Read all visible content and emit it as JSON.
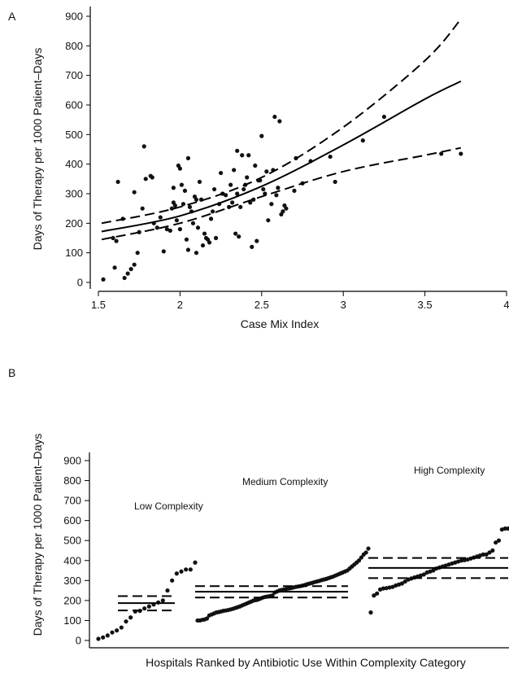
{
  "chart_data": [
    {
      "panel": "A",
      "type": "scatter",
      "xlabel": "Case Mix Index",
      "ylabel": "Days of Therapy per 1000 Patient–Days",
      "xlim": [
        1.5,
        4
      ],
      "ylim": [
        0,
        900
      ],
      "xticks": [
        1.5,
        2,
        2.5,
        3,
        3.5,
        4
      ],
      "xtick_labels": [
        "1.5",
        "2",
        "2.5",
        "3",
        "3.5",
        "4"
      ],
      "yticks": [
        0,
        100,
        200,
        300,
        400,
        500,
        600,
        700,
        800,
        900
      ],
      "grid": false,
      "points": [
        [
          1.53,
          10
        ],
        [
          1.59,
          150
        ],
        [
          1.6,
          50
        ],
        [
          1.61,
          140
        ],
        [
          1.62,
          340
        ],
        [
          1.65,
          215
        ],
        [
          1.66,
          15
        ],
        [
          1.68,
          30
        ],
        [
          1.7,
          45
        ],
        [
          1.72,
          60
        ],
        [
          1.72,
          305
        ],
        [
          1.74,
          100
        ],
        [
          1.75,
          170
        ],
        [
          1.77,
          250
        ],
        [
          1.78,
          460
        ],
        [
          1.79,
          350
        ],
        [
          1.82,
          360
        ],
        [
          1.83,
          355
        ],
        [
          1.84,
          200
        ],
        [
          1.86,
          185
        ],
        [
          1.88,
          220
        ],
        [
          1.9,
          105
        ],
        [
          1.92,
          180
        ],
        [
          1.94,
          175
        ],
        [
          1.95,
          250
        ],
        [
          1.96,
          320
        ],
        [
          1.96,
          270
        ],
        [
          1.97,
          260
        ],
        [
          1.98,
          210
        ],
        [
          1.99,
          395
        ],
        [
          2.0,
          385
        ],
        [
          2.0,
          180
        ],
        [
          2.01,
          330
        ],
        [
          2.02,
          265
        ],
        [
          2.03,
          310
        ],
        [
          2.04,
          145
        ],
        [
          2.05,
          420
        ],
        [
          2.05,
          110
        ],
        [
          2.06,
          255
        ],
        [
          2.07,
          240
        ],
        [
          2.08,
          200
        ],
        [
          2.09,
          290
        ],
        [
          2.1,
          280
        ],
        [
          2.1,
          100
        ],
        [
          2.11,
          185
        ],
        [
          2.12,
          340
        ],
        [
          2.13,
          280
        ],
        [
          2.14,
          125
        ],
        [
          2.15,
          165
        ],
        [
          2.16,
          150
        ],
        [
          2.17,
          145
        ],
        [
          2.18,
          135
        ],
        [
          2.19,
          215
        ],
        [
          2.2,
          240
        ],
        [
          2.21,
          315
        ],
        [
          2.22,
          150
        ],
        [
          2.24,
          265
        ],
        [
          2.25,
          370
        ],
        [
          2.26,
          300
        ],
        [
          2.28,
          295
        ],
        [
          2.3,
          255
        ],
        [
          2.31,
          330
        ],
        [
          2.32,
          270
        ],
        [
          2.33,
          380
        ],
        [
          2.34,
          165
        ],
        [
          2.35,
          445
        ],
        [
          2.35,
          300
        ],
        [
          2.36,
          155
        ],
        [
          2.37,
          255
        ],
        [
          2.38,
          430
        ],
        [
          2.39,
          315
        ],
        [
          2.4,
          330
        ],
        [
          2.41,
          355
        ],
        [
          2.42,
          430
        ],
        [
          2.43,
          270
        ],
        [
          2.44,
          120
        ],
        [
          2.45,
          280
        ],
        [
          2.46,
          395
        ],
        [
          2.47,
          140
        ],
        [
          2.48,
          345
        ],
        [
          2.49,
          345
        ],
        [
          2.5,
          495
        ],
        [
          2.51,
          315
        ],
        [
          2.52,
          300
        ],
        [
          2.53,
          375
        ],
        [
          2.54,
          210
        ],
        [
          2.56,
          265
        ],
        [
          2.57,
          380
        ],
        [
          2.58,
          560
        ],
        [
          2.59,
          295
        ],
        [
          2.6,
          320
        ],
        [
          2.61,
          545
        ],
        [
          2.62,
          230
        ],
        [
          2.63,
          240
        ],
        [
          2.64,
          260
        ],
        [
          2.65,
          250
        ],
        [
          2.7,
          310
        ],
        [
          2.71,
          420
        ],
        [
          2.75,
          335
        ],
        [
          2.8,
          410
        ],
        [
          2.92,
          425
        ],
        [
          2.95,
          340
        ],
        [
          3.12,
          480
        ],
        [
          3.25,
          560
        ],
        [
          3.6,
          435
        ],
        [
          3.72,
          435
        ]
      ],
      "fit_curve": [
        [
          1.52,
          172
        ],
        [
          2.0,
          225
        ],
        [
          2.5,
          325
        ],
        [
          3.0,
          465
        ],
        [
          3.5,
          620
        ],
        [
          3.72,
          680
        ]
      ],
      "ci_upper": [
        [
          1.52,
          200
        ],
        [
          2.0,
          255
        ],
        [
          2.5,
          355
        ],
        [
          3.0,
          525
        ],
        [
          3.5,
          750
        ],
        [
          3.72,
          890
        ]
      ],
      "ci_lower": [
        [
          1.52,
          145
        ],
        [
          2.0,
          200
        ],
        [
          2.5,
          290
        ],
        [
          3.0,
          375
        ],
        [
          3.5,
          430
        ],
        [
          3.72,
          455
        ]
      ]
    },
    {
      "panel": "B",
      "type": "scatter",
      "xlabel": "Hospitals Ranked by Antibiotic Use Within Complexity Category",
      "ylabel": "Days of Therapy per 1000 Patient–Days",
      "ylim": [
        0,
        900
      ],
      "yticks": [
        0,
        100,
        200,
        300,
        400,
        500,
        600,
        700,
        800,
        900
      ],
      "grid": false,
      "groups": [
        {
          "label": "Low Complexity",
          "values": [
            8,
            15,
            25,
            40,
            50,
            65,
            95,
            115,
            145,
            148,
            160,
            170,
            180,
            190,
            200,
            250,
            300,
            335,
            345,
            355,
            355,
            390
          ],
          "mean": 187,
          "ci_lower": 150,
          "ci_upper": 222
        },
        {
          "label": "Medium Complexity",
          "values": [
            100,
            100,
            103,
            105,
            110,
            125,
            130,
            135,
            140,
            142,
            145,
            148,
            150,
            152,
            155,
            158,
            162,
            166,
            170,
            175,
            180,
            185,
            190,
            195,
            200,
            202,
            205,
            210,
            215,
            218,
            220,
            222,
            225,
            240,
            245,
            250,
            253,
            255,
            258,
            260,
            262,
            265,
            268,
            270,
            272,
            275,
            278,
            282,
            285,
            288,
            292,
            295,
            298,
            302,
            305,
            308,
            312,
            316,
            320,
            325,
            330,
            335,
            340,
            345,
            350,
            360,
            370,
            380,
            390,
            400,
            415,
            430,
            440,
            460
          ],
          "mean": 244,
          "ci_lower": 215,
          "ci_upper": 272
        },
        {
          "label": "High Complexity",
          "values": [
            140,
            225,
            235,
            255,
            260,
            262,
            265,
            268,
            275,
            280,
            285,
            295,
            305,
            310,
            315,
            320,
            325,
            330,
            340,
            345,
            350,
            360,
            365,
            370,
            375,
            380,
            385,
            390,
            395,
            400,
            402,
            405,
            410,
            415,
            420,
            425,
            430,
            430,
            440,
            450,
            490,
            500,
            555,
            560,
            560
          ],
          "mean": 363,
          "ci_lower": 312,
          "ci_upper": 413
        }
      ]
    }
  ],
  "panels": {
    "a_label": "A",
    "b_label": "B"
  }
}
